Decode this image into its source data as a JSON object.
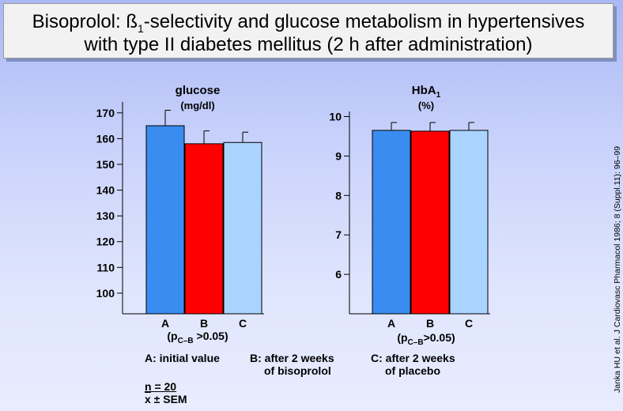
{
  "title": {
    "part1": "Bisoprolol: ß",
    "sub": "1",
    "part2": "-selectivity and glucose metabolism in hypertensives",
    "line2": "with type II diabetes mellitus (2 h after administration)"
  },
  "legend": {
    "a": "A: initial value",
    "b1": "B: after 2 weeks",
    "b2": "of bisoprolol",
    "c1": "C: after 2 weeks",
    "c2": "of placebo",
    "n": "n = 20",
    "x": "x",
    "sem": " ± SEM"
  },
  "source": "Janka HU et al. J Cardiovasc Pharmacol 1986; 8 (Suppl.11): 96–99",
  "colors": {
    "A": "#3a8cf0",
    "B": "#ff0000",
    "C": "#aad4ff"
  },
  "chart_data": [
    {
      "type": "bar",
      "title": "glucose",
      "unit": "(mg/dl)",
      "categories": [
        "A",
        "B",
        "C"
      ],
      "values": [
        165,
        158,
        158.5
      ],
      "errors": [
        6,
        5,
        4
      ],
      "yticks": [
        100,
        110,
        120,
        130,
        140,
        150,
        160,
        170
      ],
      "ylim": [
        92,
        173
      ],
      "note_pre": "(p",
      "note_sub": "C–B",
      "note_post": " >0.05)"
    },
    {
      "type": "bar",
      "title": "HbA",
      "title_sub": "1",
      "unit": "(%)",
      "categories": [
        "A",
        "B",
        "C"
      ],
      "values": [
        9.65,
        9.63,
        9.65
      ],
      "errors": [
        0.2,
        0.22,
        0.2
      ],
      "yticks": [
        6,
        7,
        8,
        9,
        10
      ],
      "ylim": [
        5,
        10.05
      ],
      "note_pre": "(p",
      "note_sub": "C–B",
      "note_post": ">0.05)"
    }
  ]
}
